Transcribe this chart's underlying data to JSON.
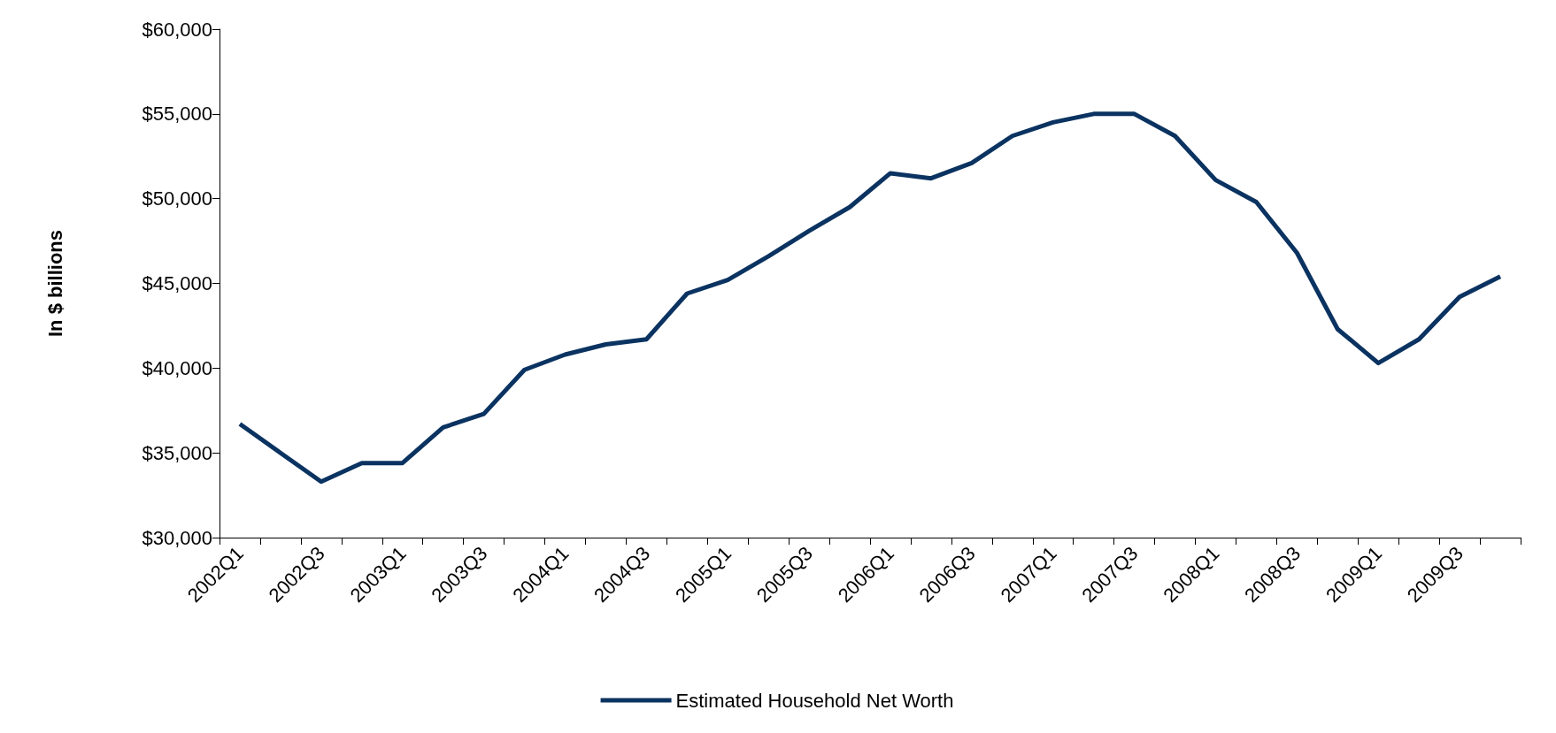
{
  "chart_data": {
    "type": "line",
    "ylabel": "In $ billions",
    "categories": [
      "2002Q1",
      null,
      "2002Q3",
      null,
      "2003Q1",
      null,
      "2003Q3",
      null,
      "2004Q1",
      null,
      "2004Q3",
      null,
      "2005Q1",
      null,
      "2005Q3",
      null,
      "2006Q1",
      null,
      "2006Q3",
      null,
      "2007Q1",
      null,
      "2007Q3",
      null,
      "2008Q1",
      null,
      "2008Q3",
      null,
      "2009Q1",
      null,
      "2009Q3",
      null
    ],
    "series": [
      {
        "name": "Estimated Household Net Worth",
        "color": "#0b3361",
        "values": [
          36700,
          35000,
          33300,
          34400,
          34400,
          36500,
          37300,
          39900,
          40800,
          41400,
          41700,
          44400,
          45200,
          46600,
          48100,
          49500,
          51500,
          51200,
          52100,
          53700,
          54500,
          55000,
          55000,
          53700,
          51100,
          49800,
          46800,
          42300,
          40300,
          41700,
          44200,
          45400
        ]
      }
    ],
    "ylim": [
      30000,
      60000
    ],
    "yticks": [
      {
        "value": 30000,
        "label": "$30,000"
      },
      {
        "value": 35000,
        "label": "$35,000"
      },
      {
        "value": 40000,
        "label": "$40,000"
      },
      {
        "value": 45000,
        "label": "$45,000"
      },
      {
        "value": 50000,
        "label": "$50,000"
      },
      {
        "value": 55000,
        "label": "$55,000"
      },
      {
        "value": 60000,
        "label": "$60,000"
      }
    ],
    "grid": false,
    "legend": "bottom",
    "marker": "none",
    "line_style": "solid"
  }
}
